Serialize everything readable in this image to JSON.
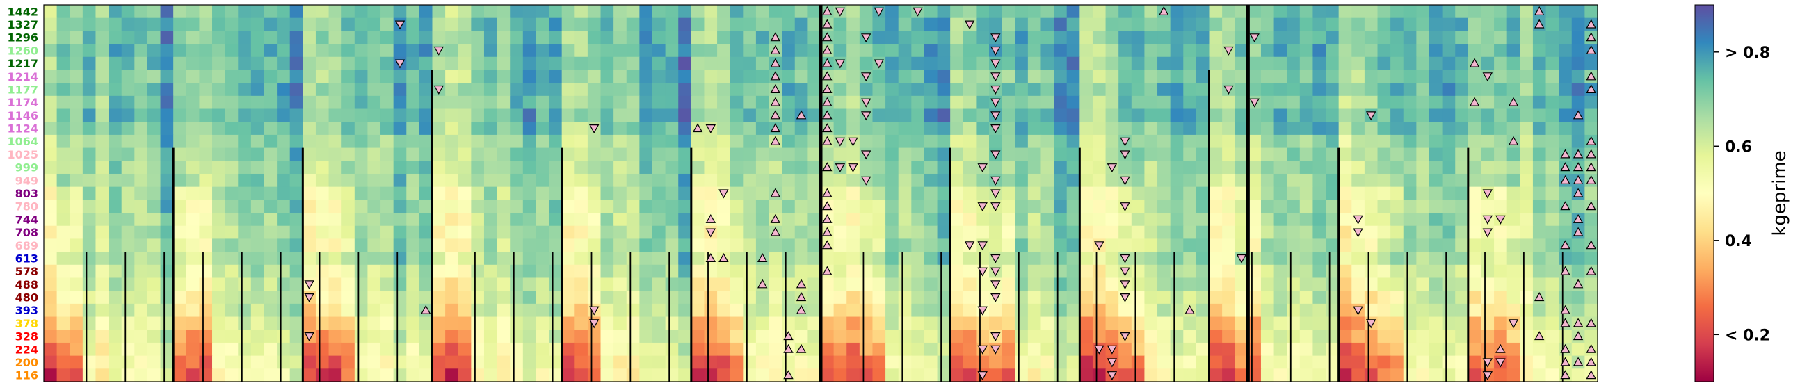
{
  "chart_data": {
    "type": "heatmap",
    "colormap": "Spectral",
    "rows": [
      "1442",
      "1327",
      "1296",
      "1260",
      "1217",
      "1214",
      "1177",
      "1174",
      "1146",
      "1124",
      "1064",
      "1025",
      "999",
      "949",
      "803",
      "780",
      "744",
      "708",
      "689",
      "613",
      "578",
      "488",
      "480",
      "393",
      "378",
      "328",
      "224",
      "200",
      "116"
    ],
    "row_label_colors": [
      "#006400",
      "#006400",
      "#006400",
      "#90ee90",
      "#006400",
      "#da70d6",
      "#90ee90",
      "#da70d6",
      "#da70d6",
      "#da70d6",
      "#90ee90",
      "#ffb6c1",
      "#90ee90",
      "#ffb6c1",
      "#800080",
      "#ffb6c1",
      "#800080",
      "#800080",
      "#ffb6c1",
      "#0000cd",
      "#8b0000",
      "#8b0000",
      "#8b0000",
      "#0000cd",
      "#ffd700",
      "#ff0000",
      "#ff0000",
      "#ff8c00",
      "#ff8c00"
    ],
    "n_columns": 120,
    "seed": 7,
    "colorbar": {
      "label": "kgeprime",
      "ticks": [
        "< 0.2",
        "0.4",
        "0.6",
        "> 0.8"
      ],
      "tick_values": [
        0.2,
        0.4,
        0.6,
        0.8
      ],
      "range": [
        0.1,
        0.9
      ]
    },
    "marker_legend": {
      "up": "pink triangle pointing up",
      "down": "pink triangle pointing down"
    },
    "markers": [
      {
        "col": 60,
        "row": 0,
        "dir": "up"
      },
      {
        "col": 61,
        "row": 0,
        "dir": "down"
      },
      {
        "col": 64,
        "row": 0,
        "dir": "down"
      },
      {
        "col": 67,
        "row": 0,
        "dir": "down"
      },
      {
        "col": 86,
        "row": 0,
        "dir": "up"
      },
      {
        "col": 115,
        "row": 0,
        "dir": "up"
      },
      {
        "col": 27,
        "row": 1,
        "dir": "down"
      },
      {
        "col": 60,
        "row": 1,
        "dir": "up"
      },
      {
        "col": 71,
        "row": 1,
        "dir": "down"
      },
      {
        "col": 115,
        "row": 1,
        "dir": "up"
      },
      {
        "col": 119,
        "row": 1,
        "dir": "up"
      },
      {
        "col": 56,
        "row": 2,
        "dir": "up"
      },
      {
        "col": 60,
        "row": 2,
        "dir": "up"
      },
      {
        "col": 63,
        "row": 2,
        "dir": "down"
      },
      {
        "col": 73,
        "row": 2,
        "dir": "down"
      },
      {
        "col": 93,
        "row": 2,
        "dir": "down"
      },
      {
        "col": 119,
        "row": 2,
        "dir": "up"
      },
      {
        "col": 30,
        "row": 3,
        "dir": "down"
      },
      {
        "col": 56,
        "row": 3,
        "dir": "up"
      },
      {
        "col": 60,
        "row": 3,
        "dir": "up"
      },
      {
        "col": 73,
        "row": 3,
        "dir": "down"
      },
      {
        "col": 91,
        "row": 3,
        "dir": "down"
      },
      {
        "col": 119,
        "row": 3,
        "dir": "up"
      },
      {
        "col": 27,
        "row": 4,
        "dir": "down"
      },
      {
        "col": 56,
        "row": 4,
        "dir": "up"
      },
      {
        "col": 60,
        "row": 4,
        "dir": "up"
      },
      {
        "col": 61,
        "row": 4,
        "dir": "down"
      },
      {
        "col": 64,
        "row": 4,
        "dir": "down"
      },
      {
        "col": 73,
        "row": 4,
        "dir": "down"
      },
      {
        "col": 110,
        "row": 4,
        "dir": "up"
      },
      {
        "col": 56,
        "row": 5,
        "dir": "up"
      },
      {
        "col": 60,
        "row": 5,
        "dir": "up"
      },
      {
        "col": 63,
        "row": 5,
        "dir": "down"
      },
      {
        "col": 73,
        "row": 5,
        "dir": "down"
      },
      {
        "col": 111,
        "row": 5,
        "dir": "down"
      },
      {
        "col": 119,
        "row": 5,
        "dir": "up"
      },
      {
        "col": 30,
        "row": 6,
        "dir": "down"
      },
      {
        "col": 56,
        "row": 6,
        "dir": "up"
      },
      {
        "col": 60,
        "row": 6,
        "dir": "up"
      },
      {
        "col": 73,
        "row": 6,
        "dir": "down"
      },
      {
        "col": 91,
        "row": 6,
        "dir": "down"
      },
      {
        "col": 119,
        "row": 6,
        "dir": "up"
      },
      {
        "col": 56,
        "row": 7,
        "dir": "up"
      },
      {
        "col": 60,
        "row": 7,
        "dir": "up"
      },
      {
        "col": 63,
        "row": 7,
        "dir": "down"
      },
      {
        "col": 73,
        "row": 7,
        "dir": "down"
      },
      {
        "col": 93,
        "row": 7,
        "dir": "down"
      },
      {
        "col": 110,
        "row": 7,
        "dir": "up"
      },
      {
        "col": 113,
        "row": 7,
        "dir": "up"
      },
      {
        "col": 56,
        "row": 8,
        "dir": "up"
      },
      {
        "col": 58,
        "row": 8,
        "dir": "up"
      },
      {
        "col": 60,
        "row": 8,
        "dir": "up"
      },
      {
        "col": 63,
        "row": 8,
        "dir": "down"
      },
      {
        "col": 73,
        "row": 8,
        "dir": "down"
      },
      {
        "col": 102,
        "row": 8,
        "dir": "down"
      },
      {
        "col": 118,
        "row": 8,
        "dir": "up"
      },
      {
        "col": 42,
        "row": 9,
        "dir": "down"
      },
      {
        "col": 50,
        "row": 9,
        "dir": "up"
      },
      {
        "col": 51,
        "row": 9,
        "dir": "down"
      },
      {
        "col": 56,
        "row": 9,
        "dir": "up"
      },
      {
        "col": 60,
        "row": 9,
        "dir": "up"
      },
      {
        "col": 73,
        "row": 9,
        "dir": "down"
      },
      {
        "col": 56,
        "row": 10,
        "dir": "up"
      },
      {
        "col": 60,
        "row": 10,
        "dir": "up"
      },
      {
        "col": 61,
        "row": 10,
        "dir": "down"
      },
      {
        "col": 62,
        "row": 10,
        "dir": "down"
      },
      {
        "col": 83,
        "row": 10,
        "dir": "down"
      },
      {
        "col": 113,
        "row": 10,
        "dir": "up"
      },
      {
        "col": 119,
        "row": 10,
        "dir": "up"
      },
      {
        "col": 63,
        "row": 11,
        "dir": "down"
      },
      {
        "col": 73,
        "row": 11,
        "dir": "down"
      },
      {
        "col": 83,
        "row": 11,
        "dir": "down"
      },
      {
        "col": 117,
        "row": 11,
        "dir": "up"
      },
      {
        "col": 118,
        "row": 11,
        "dir": "up"
      },
      {
        "col": 119,
        "row": 11,
        "dir": "up"
      },
      {
        "col": 60,
        "row": 12,
        "dir": "up"
      },
      {
        "col": 61,
        "row": 12,
        "dir": "down"
      },
      {
        "col": 62,
        "row": 12,
        "dir": "down"
      },
      {
        "col": 72,
        "row": 12,
        "dir": "down"
      },
      {
        "col": 82,
        "row": 12,
        "dir": "down"
      },
      {
        "col": 117,
        "row": 12,
        "dir": "up"
      },
      {
        "col": 118,
        "row": 12,
        "dir": "up"
      },
      {
        "col": 119,
        "row": 12,
        "dir": "up"
      },
      {
        "col": 63,
        "row": 13,
        "dir": "down"
      },
      {
        "col": 73,
        "row": 13,
        "dir": "down"
      },
      {
        "col": 83,
        "row": 13,
        "dir": "down"
      },
      {
        "col": 117,
        "row": 13,
        "dir": "up"
      },
      {
        "col": 118,
        "row": 13,
        "dir": "up"
      },
      {
        "col": 119,
        "row": 13,
        "dir": "up"
      },
      {
        "col": 52,
        "row": 14,
        "dir": "down"
      },
      {
        "col": 56,
        "row": 14,
        "dir": "up"
      },
      {
        "col": 60,
        "row": 14,
        "dir": "up"
      },
      {
        "col": 73,
        "row": 14,
        "dir": "down"
      },
      {
        "col": 111,
        "row": 14,
        "dir": "down"
      },
      {
        "col": 118,
        "row": 14,
        "dir": "up"
      },
      {
        "col": 60,
        "row": 15,
        "dir": "up"
      },
      {
        "col": 72,
        "row": 15,
        "dir": "down"
      },
      {
        "col": 73,
        "row": 15,
        "dir": "down"
      },
      {
        "col": 83,
        "row": 15,
        "dir": "down"
      },
      {
        "col": 117,
        "row": 15,
        "dir": "up"
      },
      {
        "col": 119,
        "row": 15,
        "dir": "up"
      },
      {
        "col": 51,
        "row": 16,
        "dir": "up"
      },
      {
        "col": 56,
        "row": 16,
        "dir": "up"
      },
      {
        "col": 60,
        "row": 16,
        "dir": "up"
      },
      {
        "col": 101,
        "row": 16,
        "dir": "down"
      },
      {
        "col": 111,
        "row": 16,
        "dir": "down"
      },
      {
        "col": 112,
        "row": 16,
        "dir": "down"
      },
      {
        "col": 118,
        "row": 16,
        "dir": "up"
      },
      {
        "col": 51,
        "row": 17,
        "dir": "down"
      },
      {
        "col": 56,
        "row": 17,
        "dir": "up"
      },
      {
        "col": 60,
        "row": 17,
        "dir": "up"
      },
      {
        "col": 101,
        "row": 17,
        "dir": "down"
      },
      {
        "col": 111,
        "row": 17,
        "dir": "down"
      },
      {
        "col": 118,
        "row": 17,
        "dir": "up"
      },
      {
        "col": 60,
        "row": 18,
        "dir": "up"
      },
      {
        "col": 71,
        "row": 18,
        "dir": "down"
      },
      {
        "col": 72,
        "row": 18,
        "dir": "down"
      },
      {
        "col": 81,
        "row": 18,
        "dir": "down"
      },
      {
        "col": 117,
        "row": 18,
        "dir": "up"
      },
      {
        "col": 119,
        "row": 18,
        "dir": "up"
      },
      {
        "col": 51,
        "row": 19,
        "dir": "up"
      },
      {
        "col": 52,
        "row": 19,
        "dir": "up"
      },
      {
        "col": 55,
        "row": 19,
        "dir": "up"
      },
      {
        "col": 73,
        "row": 19,
        "dir": "down"
      },
      {
        "col": 83,
        "row": 19,
        "dir": "down"
      },
      {
        "col": 92,
        "row": 19,
        "dir": "down"
      },
      {
        "col": 60,
        "row": 20,
        "dir": "up"
      },
      {
        "col": 72,
        "row": 20,
        "dir": "down"
      },
      {
        "col": 73,
        "row": 20,
        "dir": "down"
      },
      {
        "col": 83,
        "row": 20,
        "dir": "down"
      },
      {
        "col": 117,
        "row": 20,
        "dir": "up"
      },
      {
        "col": 119,
        "row": 20,
        "dir": "up"
      },
      {
        "col": 20,
        "row": 21,
        "dir": "down"
      },
      {
        "col": 55,
        "row": 21,
        "dir": "up"
      },
      {
        "col": 58,
        "row": 21,
        "dir": "up"
      },
      {
        "col": 73,
        "row": 21,
        "dir": "down"
      },
      {
        "col": 83,
        "row": 21,
        "dir": "down"
      },
      {
        "col": 118,
        "row": 21,
        "dir": "up"
      },
      {
        "col": 20,
        "row": 22,
        "dir": "down"
      },
      {
        "col": 58,
        "row": 22,
        "dir": "up"
      },
      {
        "col": 73,
        "row": 22,
        "dir": "down"
      },
      {
        "col": 83,
        "row": 22,
        "dir": "down"
      },
      {
        "col": 115,
        "row": 22,
        "dir": "up"
      },
      {
        "col": 29,
        "row": 23,
        "dir": "up"
      },
      {
        "col": 42,
        "row": 23,
        "dir": "down"
      },
      {
        "col": 58,
        "row": 23,
        "dir": "up"
      },
      {
        "col": 72,
        "row": 23,
        "dir": "down"
      },
      {
        "col": 88,
        "row": 23,
        "dir": "up"
      },
      {
        "col": 101,
        "row": 23,
        "dir": "down"
      },
      {
        "col": 117,
        "row": 23,
        "dir": "up"
      },
      {
        "col": 42,
        "row": 24,
        "dir": "down"
      },
      {
        "col": 102,
        "row": 24,
        "dir": "down"
      },
      {
        "col": 113,
        "row": 24,
        "dir": "down"
      },
      {
        "col": 117,
        "row": 24,
        "dir": "up"
      },
      {
        "col": 118,
        "row": 24,
        "dir": "up"
      },
      {
        "col": 119,
        "row": 24,
        "dir": "up"
      },
      {
        "col": 20,
        "row": 25,
        "dir": "down"
      },
      {
        "col": 57,
        "row": 25,
        "dir": "up"
      },
      {
        "col": 73,
        "row": 25,
        "dir": "down"
      },
      {
        "col": 83,
        "row": 25,
        "dir": "down"
      },
      {
        "col": 115,
        "row": 25,
        "dir": "up"
      },
      {
        "col": 118,
        "row": 25,
        "dir": "up"
      },
      {
        "col": 57,
        "row": 26,
        "dir": "up"
      },
      {
        "col": 58,
        "row": 26,
        "dir": "up"
      },
      {
        "col": 72,
        "row": 26,
        "dir": "down"
      },
      {
        "col": 73,
        "row": 26,
        "dir": "down"
      },
      {
        "col": 81,
        "row": 26,
        "dir": "down"
      },
      {
        "col": 82,
        "row": 26,
        "dir": "down"
      },
      {
        "col": 112,
        "row": 26,
        "dir": "up"
      },
      {
        "col": 117,
        "row": 26,
        "dir": "up"
      },
      {
        "col": 119,
        "row": 26,
        "dir": "up"
      },
      {
        "col": 82,
        "row": 27,
        "dir": "down"
      },
      {
        "col": 111,
        "row": 27,
        "dir": "down"
      },
      {
        "col": 112,
        "row": 27,
        "dir": "down"
      },
      {
        "col": 117,
        "row": 27,
        "dir": "up"
      },
      {
        "col": 118,
        "row": 27,
        "dir": "up"
      },
      {
        "col": 119,
        "row": 27,
        "dir": "up"
      },
      {
        "col": 57,
        "row": 28,
        "dir": "up"
      },
      {
        "col": 72,
        "row": 28,
        "dir": "down"
      },
      {
        "col": 82,
        "row": 28,
        "dir": "down"
      },
      {
        "col": 111,
        "row": 28,
        "dir": "down"
      },
      {
        "col": 117,
        "row": 28,
        "dir": "up"
      },
      {
        "col": 119,
        "row": 28,
        "dir": "up"
      }
    ]
  }
}
